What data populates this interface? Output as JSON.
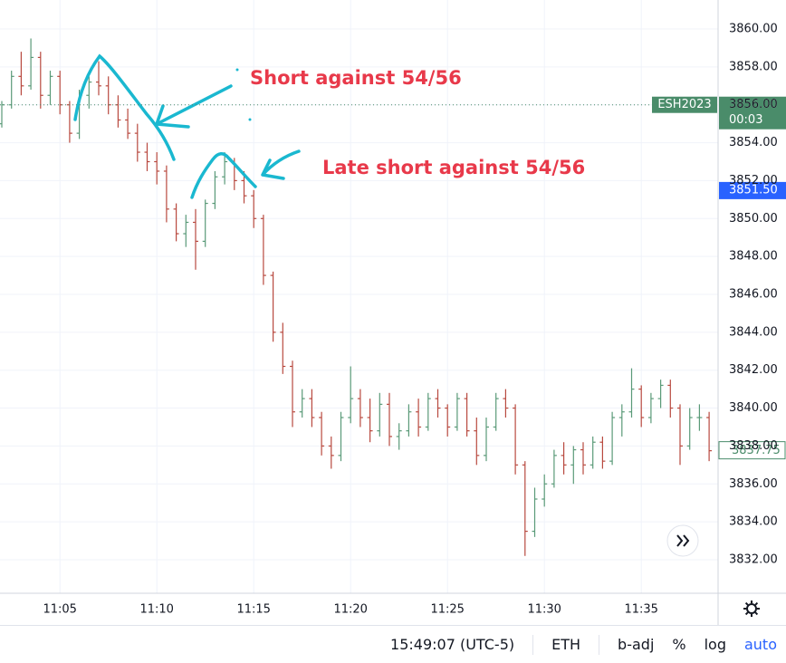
{
  "chart_data": {
    "type": "ohlc",
    "categories": [
      null,
      null,
      null,
      null,
      null,
      null,
      "11:05",
      null,
      null,
      null,
      null,
      null,
      null,
      null,
      null,
      null,
      "11:10",
      null,
      null,
      null,
      null,
      null,
      null,
      null,
      null,
      null,
      "11:15",
      null,
      null,
      null,
      null,
      null,
      null,
      null,
      null,
      null,
      "11:20",
      null,
      null,
      null,
      null,
      null,
      null,
      null,
      null,
      null,
      "11:25",
      null,
      null,
      null,
      null,
      null,
      null,
      null,
      null,
      null,
      "11:30",
      null,
      null,
      null,
      null,
      null,
      null,
      null,
      null,
      null,
      "11:35",
      null,
      null,
      null,
      null,
      null,
      null,
      null
    ],
    "open": [
      3855.0,
      3856.0,
      3857.5,
      3857.0,
      3858.5,
      3856.5,
      3857.5,
      3856.0,
      3854.5,
      3856.5,
      3857.2,
      3857.0,
      3856.0,
      3855.2,
      3854.5,
      3853.5,
      3853.0,
      3852.5,
      3850.5,
      3849.2,
      3849.8,
      3848.8,
      3850.8,
      3852.2,
      3853.0,
      3852.0,
      3851.2,
      3850.0,
      3847.0,
      3844.0,
      3842.2,
      3839.8,
      3840.5,
      3839.5,
      3838.0,
      3837.5,
      3839.5,
      3840.5,
      3839.5,
      3838.8,
      3840.2,
      3838.5,
      3838.8,
      3839.8,
      3839.0,
      3840.5,
      3840.0,
      3839.0,
      3840.5,
      3838.8,
      3837.5,
      3839.0,
      3840.5,
      3840.0,
      3837.0,
      3833.5,
      3835.2,
      3836.0,
      3837.5,
      3837.0,
      3837.8,
      3837.0,
      3838.2,
      3837.2,
      3839.5,
      3839.8,
      3841.0,
      3839.5,
      3840.5,
      3841.2,
      3840.0,
      3838.0,
      3839.5,
      3839.5
    ],
    "high": [
      3856.2,
      3857.8,
      3858.8,
      3859.5,
      3858.8,
      3857.8,
      3857.8,
      3856.2,
      3856.8,
      3857.5,
      3858.3,
      3857.5,
      3856.5,
      3855.8,
      3855.0,
      3854.0,
      3853.5,
      3852.8,
      3850.8,
      3850.2,
      3850.5,
      3851.0,
      3852.5,
      3853.5,
      3853.2,
      3852.5,
      3851.5,
      3850.2,
      3847.2,
      3844.5,
      3842.5,
      3841.0,
      3841.0,
      3839.8,
      3838.5,
      3839.8,
      3842.2,
      3841.0,
      3840.5,
      3840.8,
      3840.8,
      3839.2,
      3840.2,
      3840.5,
      3840.8,
      3841.0,
      3840.2,
      3840.8,
      3840.8,
      3839.5,
      3839.5,
      3840.8,
      3841.0,
      3840.2,
      3837.2,
      3835.8,
      3836.5,
      3837.8,
      3838.2,
      3838.0,
      3838.2,
      3838.5,
      3838.5,
      3839.8,
      3840.2,
      3842.1,
      3841.2,
      3840.8,
      3841.5,
      3841.5,
      3840.2,
      3840.0,
      3840.2,
      3839.8
    ],
    "low": [
      3854.8,
      3855.8,
      3856.5,
      3856.8,
      3855.8,
      3856.0,
      3855.5,
      3854.0,
      3854.2,
      3855.8,
      3856.5,
      3855.5,
      3854.8,
      3854.2,
      3853.0,
      3852.5,
      3851.8,
      3849.8,
      3848.8,
      3848.5,
      3847.3,
      3848.5,
      3850.5,
      3851.8,
      3851.5,
      3850.8,
      3849.5,
      3846.5,
      3843.5,
      3841.8,
      3839.0,
      3839.5,
      3839.0,
      3837.5,
      3836.8,
      3837.2,
      3839.2,
      3839.0,
      3838.2,
      3838.5,
      3838.0,
      3837.8,
      3838.5,
      3838.5,
      3838.8,
      3839.5,
      3838.5,
      3838.8,
      3838.5,
      3837.0,
      3837.2,
      3838.8,
      3839.5,
      3836.5,
      3832.2,
      3833.2,
      3834.8,
      3835.8,
      3836.5,
      3836.0,
      3836.5,
      3836.8,
      3836.8,
      3837.0,
      3838.5,
      3839.5,
      3839.0,
      3839.2,
      3840.0,
      3839.5,
      3837.0,
      3837.8,
      3838.8,
      3837.2
    ],
    "close": [
      3856.0,
      3857.5,
      3857.0,
      3858.5,
      3856.5,
      3857.5,
      3856.0,
      3854.5,
      3856.5,
      3857.2,
      3857.0,
      3856.0,
      3855.2,
      3854.5,
      3853.5,
      3853.0,
      3852.5,
      3850.5,
      3849.2,
      3849.8,
      3848.8,
      3850.8,
      3852.2,
      3853.0,
      3852.0,
      3851.2,
      3850.0,
      3847.0,
      3844.0,
      3842.2,
      3839.8,
      3840.5,
      3839.5,
      3838.0,
      3837.5,
      3839.5,
      3840.5,
      3839.5,
      3838.8,
      3840.2,
      3838.5,
      3838.8,
      3839.8,
      3839.0,
      3840.5,
      3840.0,
      3839.0,
      3840.5,
      3838.8,
      3837.5,
      3839.0,
      3840.5,
      3840.0,
      3837.0,
      3833.5,
      3835.2,
      3836.0,
      3837.5,
      3837.0,
      3837.8,
      3837.0,
      3838.2,
      3837.2,
      3839.5,
      3839.8,
      3841.0,
      3839.5,
      3840.5,
      3841.2,
      3840.0,
      3838.0,
      3839.5,
      3839.5,
      3837.75
    ],
    "up_color": "#5a9a78",
    "down_color": "#b8493f",
    "ylim": [
      3830.23,
      3861.53
    ],
    "yticks": [
      {
        "value": 3832,
        "label": "3832.00"
      },
      {
        "value": 3834,
        "label": "3834.00"
      },
      {
        "value": 3836,
        "label": "3836.00"
      },
      {
        "value": 3838,
        "label": "3838.00"
      },
      {
        "value": 3840,
        "label": "3840.00"
      },
      {
        "value": 3842,
        "label": "3842.00"
      },
      {
        "value": 3844,
        "label": "3844.00"
      },
      {
        "value": 3846,
        "label": "3846.00"
      },
      {
        "value": 3848,
        "label": "3848.00"
      },
      {
        "value": 3850,
        "label": "3850.00"
      },
      {
        "value": 3852,
        "label": "3852.00"
      },
      {
        "value": 3854,
        "label": "3854.00"
      },
      {
        "value": 3856,
        "label": "3856.00"
      },
      {
        "value": 3858,
        "label": "3858.00"
      },
      {
        "value": 3860,
        "label": "3860.00"
      }
    ],
    "grid": true,
    "price_markers": [
      {
        "name": "ESH2023",
        "value": 3856,
        "label": "3856.00",
        "timer": "00:03",
        "color": "#4a8c6a"
      },
      {
        "value": 3851.5,
        "label": "3851.50",
        "color": "#2962ff"
      },
      {
        "value": 3837.75,
        "label": "3837.75",
        "color": "#4a8c6a"
      }
    ],
    "annotations": [
      "Short against 54/56",
      "Late short against 54/56"
    ]
  },
  "toolbar": {
    "time": "15:49:07 (UTC-5)",
    "session": "ETH",
    "adjust": "b-adj",
    "percent": "%",
    "log": "log",
    "auto": "auto"
  }
}
